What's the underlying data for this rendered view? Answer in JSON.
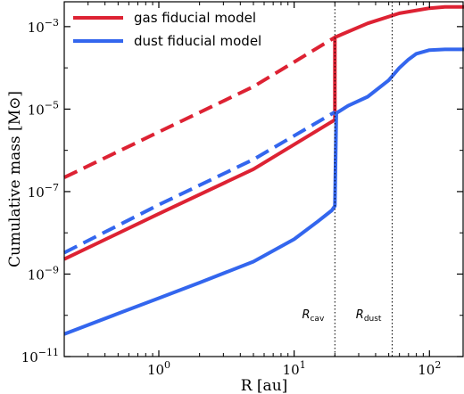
{
  "chart_data": {
    "type": "line",
    "title": "",
    "xlabel": "R [au]",
    "ylabel": "Cumulative mass [M⊙]",
    "xscale": "log",
    "yscale": "log",
    "xlim": [
      0.2,
      180
    ],
    "ylim": [
      1e-11,
      0.004
    ],
    "grid": false,
    "legend_position": "top-left",
    "x_ticks": [
      {
        "value": 1,
        "base": "10",
        "exp": "0"
      },
      {
        "value": 10,
        "base": "10",
        "exp": "1"
      },
      {
        "value": 100,
        "base": "10",
        "exp": "2"
      }
    ],
    "y_ticks": [
      {
        "value": 1e-11,
        "base": "10",
        "exp": "−11"
      },
      {
        "value": 1e-09,
        "base": "10",
        "exp": "−9"
      },
      {
        "value": 1e-07,
        "base": "10",
        "exp": "−7"
      },
      {
        "value": 1e-05,
        "base": "10",
        "exp": "−5"
      },
      {
        "value": 0.001,
        "base": "10",
        "exp": "−3"
      }
    ],
    "vlines": [
      {
        "x": 20,
        "label": "R",
        "label_sub": "cav"
      },
      {
        "x": 53,
        "label": "R",
        "label_sub": "dust"
      }
    ],
    "series": [
      {
        "name": "gas fiducial model",
        "color": "#dd2233",
        "style": "solid",
        "in_legend": true,
        "points": [
          [
            0.2,
            2.3e-09
          ],
          [
            1,
            2.9e-08
          ],
          [
            5,
            3.5e-07
          ],
          [
            20,
            5.5e-06
          ],
          [
            20,
            0.00055
          ],
          [
            35,
            0.0012
          ],
          [
            60,
            0.0021
          ],
          [
            100,
            0.0028
          ],
          [
            130,
            0.003
          ],
          [
            180,
            0.003
          ]
        ]
      },
      {
        "name": "",
        "color": "#dd2233",
        "style": "dashed",
        "in_legend": false,
        "points": [
          [
            0.2,
            2.2e-07
          ],
          [
            1,
            2.8e-06
          ],
          [
            5,
            3.5e-05
          ],
          [
            20,
            0.00055
          ]
        ]
      },
      {
        "name": "dust fiducial model",
        "color": "#3366ee",
        "style": "solid",
        "in_legend": true,
        "points": [
          [
            0.2,
            3.5e-11
          ],
          [
            0.5,
            1.1e-10
          ],
          [
            1,
            2.6e-10
          ],
          [
            2,
            6.2e-10
          ],
          [
            5,
            2e-09
          ],
          [
            10,
            7e-09
          ],
          [
            15,
            1.9e-08
          ],
          [
            19,
            3.5e-08
          ],
          [
            20,
            4.5e-08
          ],
          [
            20.5,
            8e-06
          ],
          [
            25,
            1.2e-05
          ],
          [
            35,
            2e-05
          ],
          [
            50,
            5e-05
          ],
          [
            60,
            0.0001
          ],
          [
            70,
            0.00016
          ],
          [
            80,
            0.00022
          ],
          [
            100,
            0.00027
          ],
          [
            130,
            0.00028
          ],
          [
            180,
            0.00028
          ]
        ]
      },
      {
        "name": "",
        "color": "#3366ee",
        "style": "dashed",
        "in_legend": false,
        "points": [
          [
            0.2,
            3.3e-09
          ],
          [
            1,
            4.8e-08
          ],
          [
            5,
            6e-07
          ],
          [
            20,
            8.5e-06
          ]
        ]
      }
    ]
  }
}
